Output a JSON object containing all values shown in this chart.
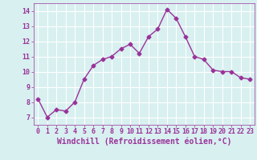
{
  "x": [
    0,
    1,
    2,
    3,
    4,
    5,
    6,
    7,
    8,
    9,
    10,
    11,
    12,
    13,
    14,
    15,
    16,
    17,
    18,
    19,
    20,
    21,
    22,
    23
  ],
  "y": [
    8.2,
    7.0,
    7.5,
    7.4,
    8.0,
    9.5,
    10.4,
    10.8,
    11.0,
    11.5,
    11.8,
    11.2,
    12.3,
    12.8,
    14.1,
    13.5,
    12.3,
    11.0,
    10.8,
    10.1,
    10.0,
    10.0,
    9.6,
    9.5
  ],
  "line_color": "#993399",
  "marker": "D",
  "marker_size": 2.5,
  "xlabel": "Windchill (Refroidissement éolien,°C)",
  "xlabel_fontsize": 7,
  "ylim": [
    6.5,
    14.5
  ],
  "xlim": [
    -0.5,
    23.5
  ],
  "yticks": [
    7,
    8,
    9,
    10,
    11,
    12,
    13,
    14
  ],
  "xticks": [
    0,
    1,
    2,
    3,
    4,
    5,
    6,
    7,
    8,
    9,
    10,
    11,
    12,
    13,
    14,
    15,
    16,
    17,
    18,
    19,
    20,
    21,
    22,
    23
  ],
  "background_color": "#d8f0f0",
  "grid_color": "#ffffff",
  "tick_fontsize": 6,
  "line_width": 1.0,
  "tick_color": "#993399",
  "xlabel_color": "#993399"
}
